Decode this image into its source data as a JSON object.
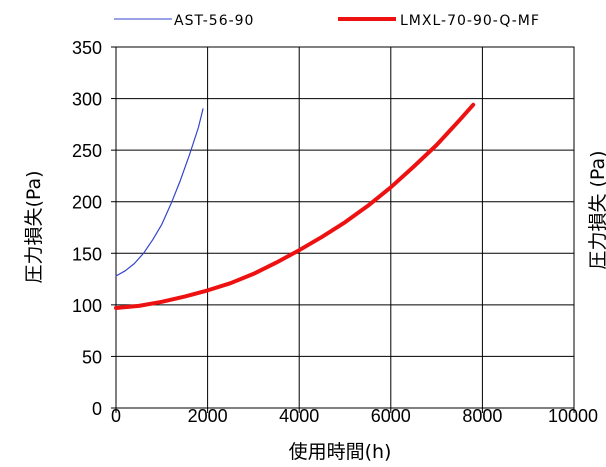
{
  "chart_data": {
    "type": "line",
    "title": "",
    "xlabel": "使用時間(h)",
    "ylabel": "圧力損失(Pa)",
    "right_ylabel": "圧力損失 (Pa)",
    "xlim": [
      0,
      10000
    ],
    "ylim": [
      0,
      350
    ],
    "xticks": [
      0,
      2000,
      4000,
      6000,
      8000,
      10000
    ],
    "yticks": [
      0,
      50,
      100,
      150,
      200,
      250,
      300,
      350
    ],
    "grid": true,
    "legend_position": "top",
    "series": [
      {
        "name": "AST-56-90",
        "color": "#3344cc",
        "x": [
          0,
          200,
          400,
          600,
          800,
          1000,
          1200,
          1400,
          1600,
          1800,
          1900
        ],
        "y": [
          128,
          133,
          140,
          150,
          163,
          178,
          198,
          220,
          245,
          272,
          290
        ]
      },
      {
        "name": "LMXL-70-90-Q-MF",
        "color": "#ee1111",
        "x": [
          0,
          500,
          1000,
          1500,
          2000,
          2500,
          3000,
          3500,
          4000,
          4500,
          5000,
          5500,
          6000,
          6500,
          7000,
          7500,
          7800
        ],
        "y": [
          97,
          99,
          103,
          108,
          114,
          121,
          130,
          141,
          153,
          166,
          180,
          196,
          214,
          234,
          255,
          279,
          294
        ]
      }
    ]
  }
}
